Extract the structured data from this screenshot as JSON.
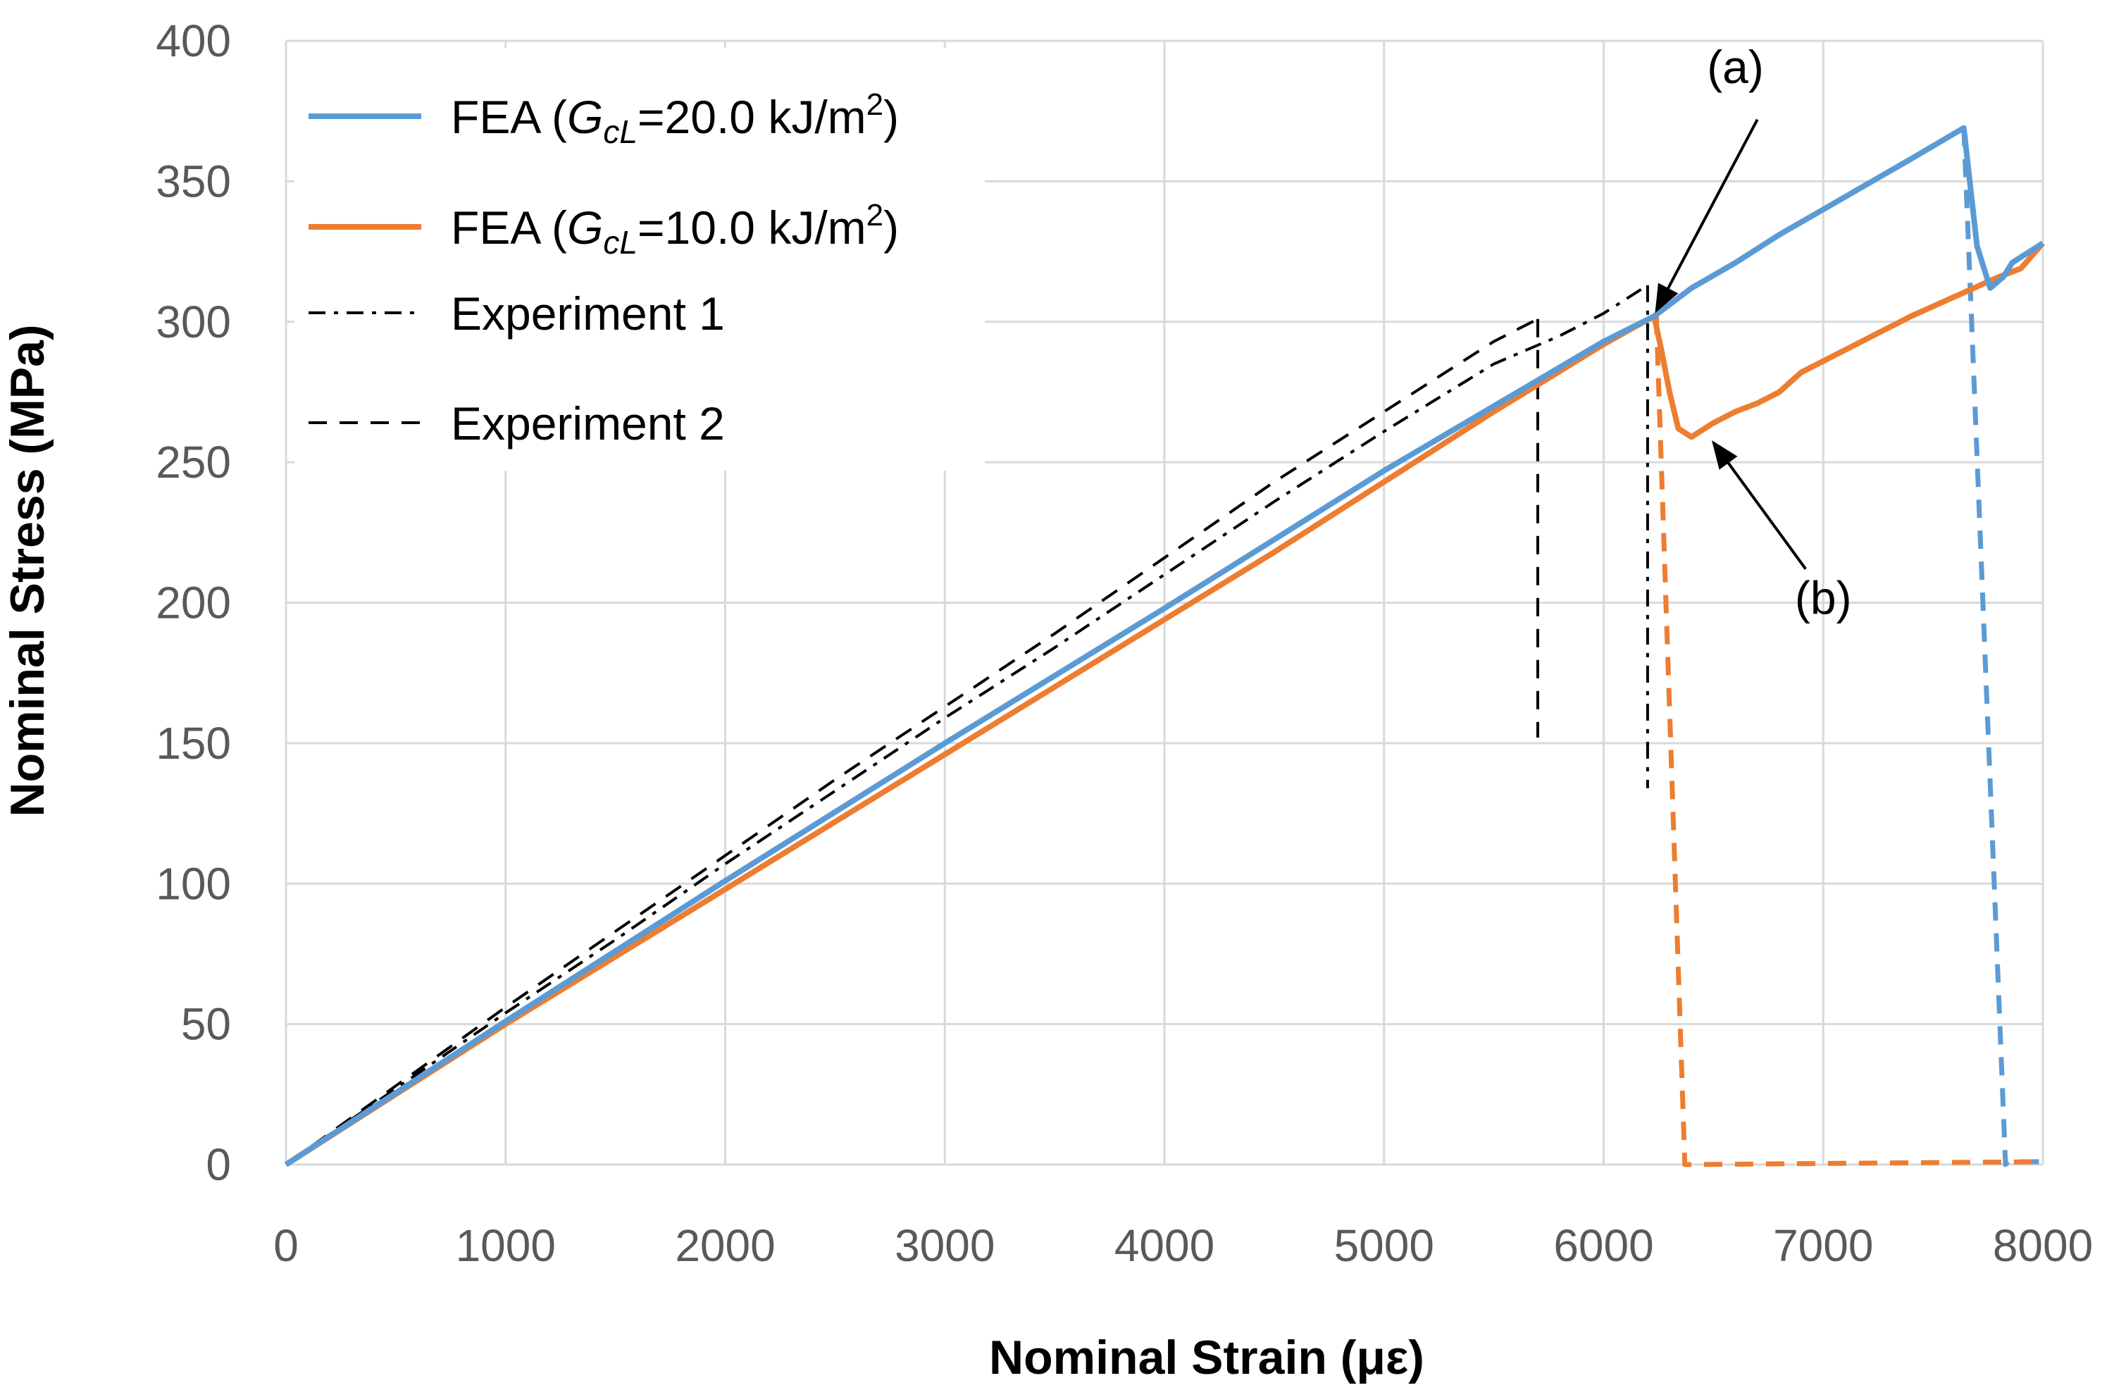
{
  "chart_data": {
    "type": "line",
    "title": "",
    "xlabel": "Nominal Strain (με)",
    "ylabel": "Nominal Stress (MPa)",
    "xlim": [
      0,
      8000
    ],
    "ylim": [
      0,
      400
    ],
    "x_ticks": [
      0,
      1000,
      2000,
      3000,
      4000,
      5000,
      6000,
      7000,
      8000
    ],
    "y_ticks": [
      0,
      50,
      100,
      150,
      200,
      250,
      300,
      350,
      400
    ],
    "grid": true,
    "legend_position": "top-left",
    "series": [
      {
        "name": "FEA (G_cL=20.0 kJ/m²)",
        "legend_prefix": "FEA (",
        "legend_G": "G",
        "legend_sub": "cL",
        "legend_mid": "=20.0 kJ/m",
        "legend_sup": "2",
        "legend_suffix": ")",
        "color": "#5B9BD5",
        "style": "solid",
        "x": [
          0,
          1000,
          2000,
          3000,
          4000,
          5000,
          6000,
          6230,
          6400,
          6600,
          6800,
          7000,
          7200,
          7400,
          7640,
          7660,
          7700,
          7760,
          7820,
          7860,
          7900,
          8000
        ],
        "y": [
          0,
          51,
          101,
          150,
          198,
          247,
          293,
          302,
          312,
          321,
          331,
          340,
          349,
          358,
          369,
          355,
          327,
          312,
          316,
          321,
          323,
          328
        ]
      },
      {
        "name": "FEA (G_cL=10.0 kJ/m²)",
        "legend_prefix": "FEA (",
        "legend_G": "G",
        "legend_sub": "cL",
        "legend_mid": "=10.0 kJ/m",
        "legend_sup": "2",
        "legend_suffix": ")",
        "color": "#ED7D31",
        "style": "solid",
        "x": [
          0,
          500,
          1000,
          1500,
          2000,
          2500,
          3000,
          3500,
          4000,
          4500,
          5000,
          5500,
          6000,
          6230,
          6260,
          6300,
          6340,
          6400,
          6500,
          6600,
          6700,
          6800,
          6900,
          7000,
          7200,
          7400,
          7600,
          7800,
          7900,
          8000
        ],
        "y": [
          0,
          25,
          50,
          74,
          98,
          122,
          146,
          170,
          194,
          218,
          243,
          268,
          292,
          302,
          291,
          275,
          262,
          259,
          264,
          268,
          271,
          275,
          282,
          286,
          294,
          302,
          309,
          316,
          319,
          328
        ]
      },
      {
        "name": "Experiment 1",
        "color": "#000000",
        "style": "dashdot",
        "x": [
          0,
          500,
          1000,
          1500,
          2000,
          2500,
          3000,
          3500,
          4000,
          4500,
          5000,
          5500,
          5800,
          6000,
          6200
        ],
        "y": [
          0,
          27,
          54,
          80,
          107,
          133,
          159,
          184,
          210,
          236,
          261,
          285,
          295,
          303,
          313
        ]
      },
      {
        "name": "Experiment 2",
        "color": "#000000",
        "style": "dashed",
        "x": [
          0,
          500,
          1000,
          1500,
          2000,
          2500,
          3000,
          3500,
          4000,
          4500,
          5000,
          5500,
          5700
        ],
        "y": [
          0,
          28,
          56,
          83,
          110,
          137,
          163,
          189,
          216,
          243,
          268,
          293,
          301
        ]
      }
    ],
    "failure_drops": [
      {
        "series": "FEA (G_cL=20.0 kJ/m²)",
        "color": "#5B9BD5",
        "style": "dashed",
        "x": [
          7640,
          7830,
          7840,
          8000
        ],
        "y": [
          369,
          0,
          1,
          1
        ]
      },
      {
        "series": "FEA (G_cL=10.0 kJ/m²)",
        "color": "#ED7D31",
        "style": "dashed",
        "x": [
          6240,
          6370,
          6390,
          8000
        ],
        "y": [
          302,
          0,
          0,
          1
        ]
      },
      {
        "series": "Experiment 1",
        "color": "#000000",
        "style": "dashdot",
        "x": [
          6200,
          6200
        ],
        "y": [
          313,
          134
        ]
      },
      {
        "series": "Experiment 2",
        "color": "#000000",
        "style": "dashed",
        "x": [
          5700,
          5700
        ],
        "y": [
          301,
          152
        ]
      }
    ],
    "annotations": [
      {
        "label": "(a)",
        "text_at": [
          6600,
          385
        ],
        "arrow_from": [
          6700,
          372
        ],
        "arrow_to": [
          6240,
          304
        ]
      },
      {
        "label": "(b)",
        "text_at": [
          7000,
          196
        ],
        "arrow_from": [
          6920,
          212
        ],
        "arrow_to": [
          6500,
          257
        ]
      }
    ]
  }
}
